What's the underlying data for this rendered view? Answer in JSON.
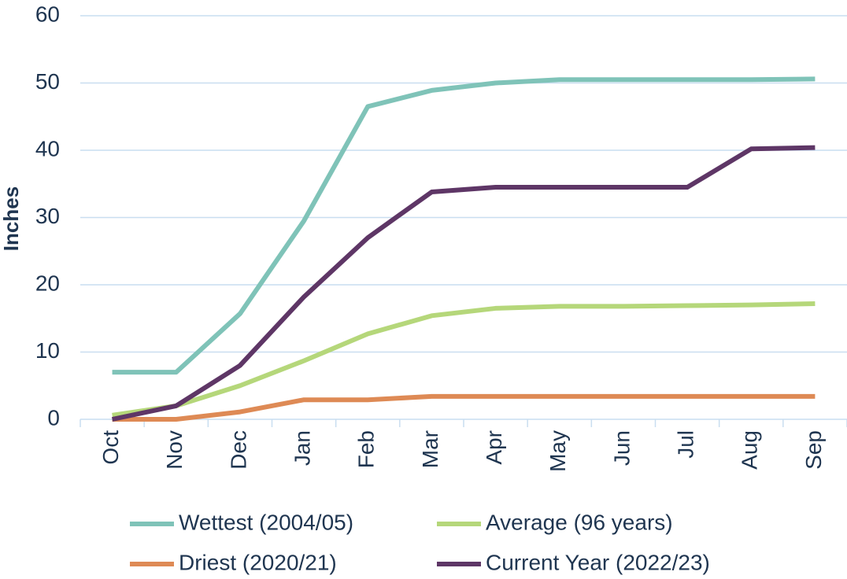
{
  "chart_data": {
    "type": "line",
    "y_label": "Inches",
    "categories": [
      "Oct",
      "Nov",
      "Dec",
      "Jan",
      "Feb",
      "Mar",
      "Apr",
      "May",
      "Jun",
      "Jul",
      "Aug",
      "Sep"
    ],
    "series": [
      {
        "name": "Wettest (2004/05)",
        "color": "#7fc3b8",
        "values": [
          7,
          7,
          15.7,
          29.5,
          46.5,
          48.9,
          50,
          50.5,
          50.5,
          50.5,
          50.5,
          50.6
        ]
      },
      {
        "name": "Average (96 years)",
        "color": "#b5d77a",
        "values": [
          0.6,
          2,
          5,
          8.7,
          12.7,
          15.4,
          16.5,
          16.8,
          16.8,
          16.9,
          17,
          17.2
        ]
      },
      {
        "name": "Driest (2020/21)",
        "color": "#de8a55",
        "values": [
          0,
          0,
          1.1,
          2.9,
          2.9,
          3.4,
          3.4,
          3.4,
          3.4,
          3.4,
          3.4,
          3.4
        ]
      },
      {
        "name": "Current Year (2022/23)",
        "color": "#5e3666",
        "values": [
          0,
          2,
          8,
          18.2,
          27,
          33.8,
          34.5,
          34.5,
          34.5,
          34.5,
          40.2,
          40.4
        ]
      }
    ],
    "ylim": [
      0,
      60
    ],
    "yticks": [
      0,
      10,
      20,
      30,
      40,
      50,
      60
    ],
    "grid": true,
    "legend": "bottom"
  }
}
